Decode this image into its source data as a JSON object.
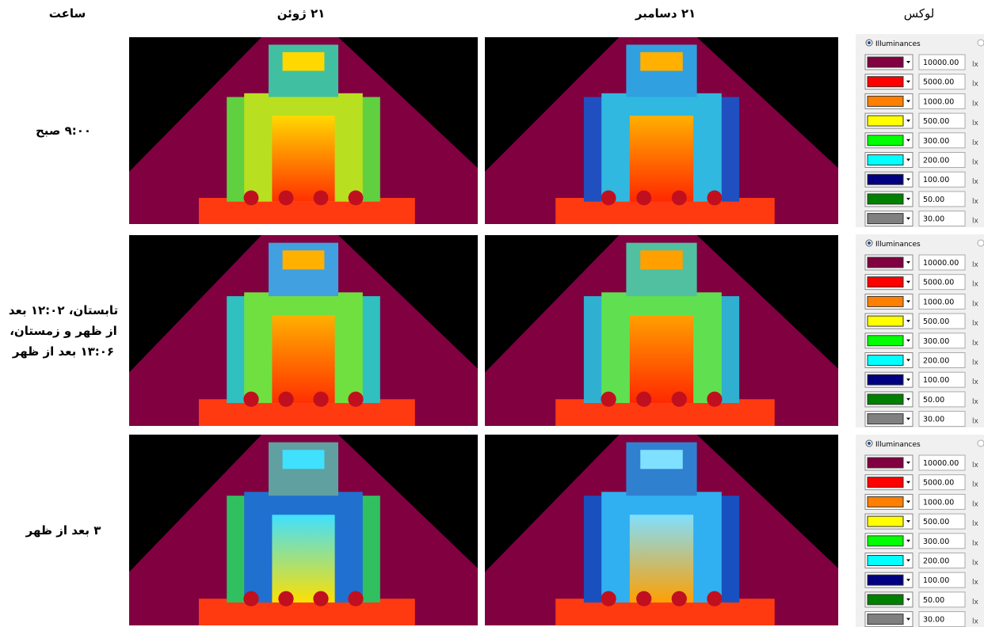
{
  "header": {
    "time": "ساعت",
    "june": "۲۱ ژوئن",
    "december": "۲۱ دسامبر",
    "lux": "لوکس"
  },
  "rows": [
    {
      "lines": [
        "۹:۰۰ صبح"
      ]
    },
    {
      "lines": [
        "تابستان، ۱۲:۰۲ بعد",
        "از ظهر و زمستان،",
        "۱۳:۰۶ بعد از ظهر"
      ]
    },
    {
      "lines": [
        "۳ بعد از ظهر"
      ]
    }
  ],
  "legends": [
    {
      "radio": "Illuminances",
      "items": [
        {
          "color": "#800040",
          "value": "10000.00",
          "unit": "lx"
        },
        {
          "color": "#ff0000",
          "value": "5000.00",
          "unit": "lx"
        },
        {
          "color": "#ff8000",
          "value": "1000.00",
          "unit": "lx"
        },
        {
          "color": "#ffff00",
          "value": "500.00",
          "unit": "lx"
        },
        {
          "color": "#00ff00",
          "value": "300.00",
          "unit": "lx"
        },
        {
          "color": "#00ffff",
          "value": "200.00",
          "unit": "lx"
        },
        {
          "color": "#000080",
          "value": "100.00",
          "unit": "lx"
        },
        {
          "color": "#008000",
          "value": "50.00",
          "unit": "lx"
        },
        {
          "color": "#808080",
          "value": "30.00",
          "unit": "lx"
        }
      ]
    },
    {
      "radio": "Illuminances",
      "items": [
        {
          "color": "#800040",
          "value": "10000.00",
          "unit": "lx"
        },
        {
          "color": "#ff0000",
          "value": "5000.00",
          "unit": "lx"
        },
        {
          "color": "#ff8000",
          "value": "1000.00",
          "unit": "lx"
        },
        {
          "color": "#ffff00",
          "value": "500.00",
          "unit": "lx"
        },
        {
          "color": "#00ff00",
          "value": "300.00",
          "unit": "lx"
        },
        {
          "color": "#00ffff",
          "value": "200.00",
          "unit": "lx"
        },
        {
          "color": "#000080",
          "value": "100.00",
          "unit": "lx"
        },
        {
          "color": "#008000",
          "value": "50.00",
          "unit": "lx"
        },
        {
          "color": "#808080",
          "value": "30.00",
          "unit": "lx"
        }
      ]
    },
    {
      "radio": "Illuminances",
      "items": [
        {
          "color": "#800040",
          "value": "10000.00",
          "unit": "lx"
        },
        {
          "color": "#ff0000",
          "value": "5000.00",
          "unit": "lx"
        },
        {
          "color": "#ff8000",
          "value": "1000.00",
          "unit": "lx"
        },
        {
          "color": "#ffff00",
          "value": "500.00",
          "unit": "lx"
        },
        {
          "color": "#00ff00",
          "value": "300.00",
          "unit": "lx"
        },
        {
          "color": "#00ffff",
          "value": "200.00",
          "unit": "lx"
        },
        {
          "color": "#000080",
          "value": "100.00",
          "unit": "lx"
        },
        {
          "color": "#008000",
          "value": "50.00",
          "unit": "lx"
        },
        {
          "color": "#808080",
          "value": "30.00",
          "unit": "lx"
        }
      ]
    }
  ]
}
